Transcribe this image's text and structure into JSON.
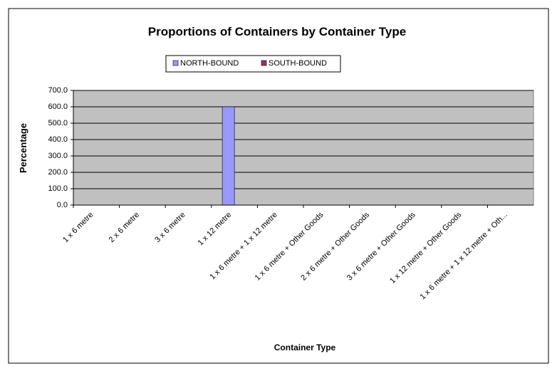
{
  "chart_data": {
    "type": "bar",
    "title": "Proportions of Containers by Container Type",
    "x_label": "Container Type",
    "y_label": "Percentage",
    "categories": [
      "1 x 6 metre",
      "2 x 6 metre",
      "3 x 6 metre",
      "1 x 12 metre",
      "1 x 6 metre + 1 x 12 metre",
      "1 x 6 metre + Other Goods",
      "2 x 6 metre + Other Goods",
      "3 x 6 metre + Other Goods",
      "1 x 12 metre + Other Goods",
      "1 x 6 metre + 1 x 12 metre + Oth..."
    ],
    "series": [
      {
        "name": "NORTH-BOUND",
        "color": "#9999ff",
        "values": [
          0,
          0,
          0,
          600,
          0,
          0,
          0,
          0,
          0,
          0
        ]
      },
      {
        "name": "SOUTH-BOUND",
        "color": "#993366",
        "values": [
          0,
          0,
          0,
          0,
          0,
          0,
          0,
          0,
          0,
          0
        ]
      }
    ],
    "ylim": [
      0,
      700
    ],
    "yticks": [
      {
        "value": 0,
        "label": "0.0"
      },
      {
        "value": 100,
        "label": "100.0"
      },
      {
        "value": 200,
        "label": "200.0"
      },
      {
        "value": 300,
        "label": "300.0"
      },
      {
        "value": 400,
        "label": "400.0"
      },
      {
        "value": 500,
        "label": "500.0"
      },
      {
        "value": 600,
        "label": "600.0"
      },
      {
        "value": 700,
        "label": "700.0"
      }
    ],
    "grid": true,
    "legend": "top",
    "plot_background": "#c0c0c0"
  }
}
